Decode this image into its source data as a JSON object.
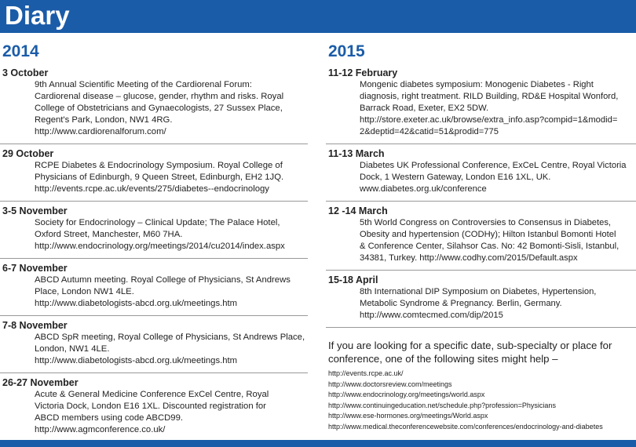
{
  "header": {
    "title": "Diary"
  },
  "columns": [
    {
      "year": "2014",
      "entries": [
        {
          "date": "3 October",
          "lines": [
            "9th Annual Scientific Meeting of the Cardiorenal Forum:",
            "Cardiorenal disease – glucose, gender, rhythm and risks. Royal",
            "College of Obstetricians and Gynaecologists, 27 Sussex Place,",
            "Regent's Park, London, NW1 4RG.",
            "http://www.cardiorenalforum.com/"
          ]
        },
        {
          "date": "29 October",
          "lines": [
            "RCPE  Diabetes & Endocrinology Symposium. Royal College of",
            "Physicians of Edinburgh, 9 Queen Street, Edinburgh,  EH2 1JQ.",
            "http://events.rcpe.ac.uk/events/275/diabetes--endocrinology"
          ]
        },
        {
          "date": "3-5 November",
          "lines": [
            "Society for Endocrinology – Clinical Update; The Palace Hotel,",
            "Oxford Street, Manchester, M60 7HA.",
            "http://www.endocrinology.org/meetings/2014/cu2014/index.aspx"
          ]
        },
        {
          "date": "6-7 November",
          "lines": [
            "ABCD Autumn meeting. Royal College of Physicians, St Andrews",
            "Place, London NW1 4LE.",
            "http://www.diabetologists-abcd.org.uk/meetings.htm"
          ]
        },
        {
          "date": "7-8 November",
          "lines": [
            "ABCD SpR meeting, Royal College of Physicians, St Andrews Place,",
            "London, NW1 4LE.",
            "http://www.diabetologists-abcd.org.uk/meetings.htm"
          ]
        },
        {
          "date": "26-27 November",
          "lines": [
            "Acute & General Medicine Conference  ExCel Centre, Royal",
            "Victoria Dock, London E16 1XL. Discounted  registration for",
            "ABCD members using code ABCD99.",
            "http://www.agmconference.co.uk/"
          ]
        }
      ]
    },
    {
      "year": "2015",
      "entries": [
        {
          "date": "11-12 February",
          "lines": [
            "Mongenic diabetes symposium: Monogenic Diabetes - Right",
            "diagnosis, right treatment. RILD Building, RD&E Hospital Wonford,",
            "Barrack Road, Exeter, EX2 5DW.",
            "http://store.exeter.ac.uk/browse/extra_info.asp?compid=1&modid=",
            "2&deptid=42&catid=51&prodid=775"
          ]
        },
        {
          "date": "11-13 March",
          "lines": [
            "Diabetes UK Professional Conference, ExCeL Centre, Royal Victoria",
            "Dock, 1 Western Gateway, London E16 1XL, UK.",
            "www.diabetes.org.uk/conference"
          ]
        },
        {
          "date": "12 -14 March",
          "lines": [
            "5th World Congress on Controversies to Consensus in Diabetes,",
            "Obesity and hypertension (CODHy); Hilton Istanbul Bomonti Hotel",
            "& Conference Center, Silahsor Cas. No: 42 Bomonti-Sisli, Istanbul,",
            "34381, Turkey.  http://www.codhy.com/2015/Default.aspx"
          ]
        },
        {
          "date": "15-18 April",
          "lines": [
            "8th International DIP Symposium on Diabetes, Hypertension,",
            "Metabolic Syndrome & Pregnancy.  Berlin, Germany.",
            "http://www.comtecmed.com/dip/2015"
          ]
        }
      ]
    }
  ],
  "note": {
    "text": "If you are looking for a specific date, sub-specialty or place for conference, one of the following sites might help –",
    "links": [
      "http://events.rcpe.ac.uk/",
      "http://www.doctorsreview.com/meetings",
      "http://www.endocrinology.org/meetings/world.aspx",
      "http://www.continuingeducation.net/schedule.php?profession=Physicians",
      "http://www.ese-hormones.org/meetings/World.aspx",
      "http://www.medical.theconferencewebsite.com/conferences/endocrinology-and-diabetes"
    ]
  }
}
